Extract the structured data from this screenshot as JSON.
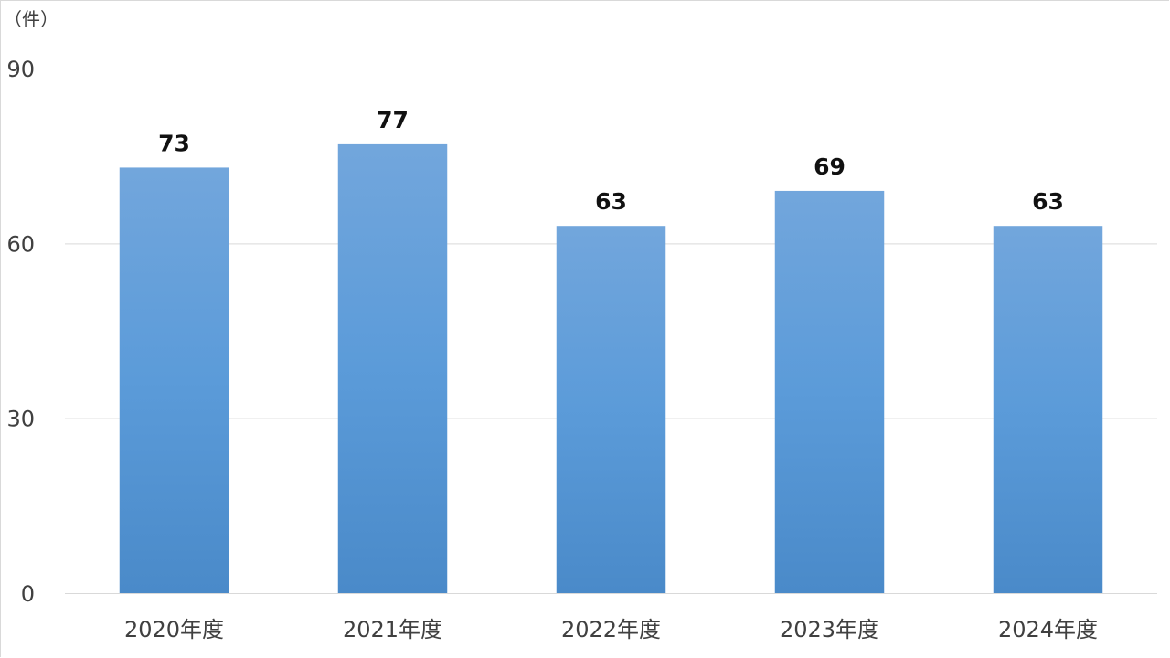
{
  "chart_data": {
    "type": "bar",
    "unit_label": "（件）",
    "categories": [
      "2020年度",
      "2021年度",
      "2022年度",
      "2023年度",
      "2024年度"
    ],
    "values": [
      73,
      77,
      63,
      69,
      63
    ],
    "ylim": [
      0,
      90
    ],
    "yticks": [
      0,
      30,
      60,
      90
    ],
    "grid": true,
    "bar_color_top": "#72a6dc",
    "bar_color_mid": "#5b9bd9",
    "bar_color_bottom": "#4a8ac9",
    "title": "",
    "xlabel": "",
    "ylabel": ""
  }
}
